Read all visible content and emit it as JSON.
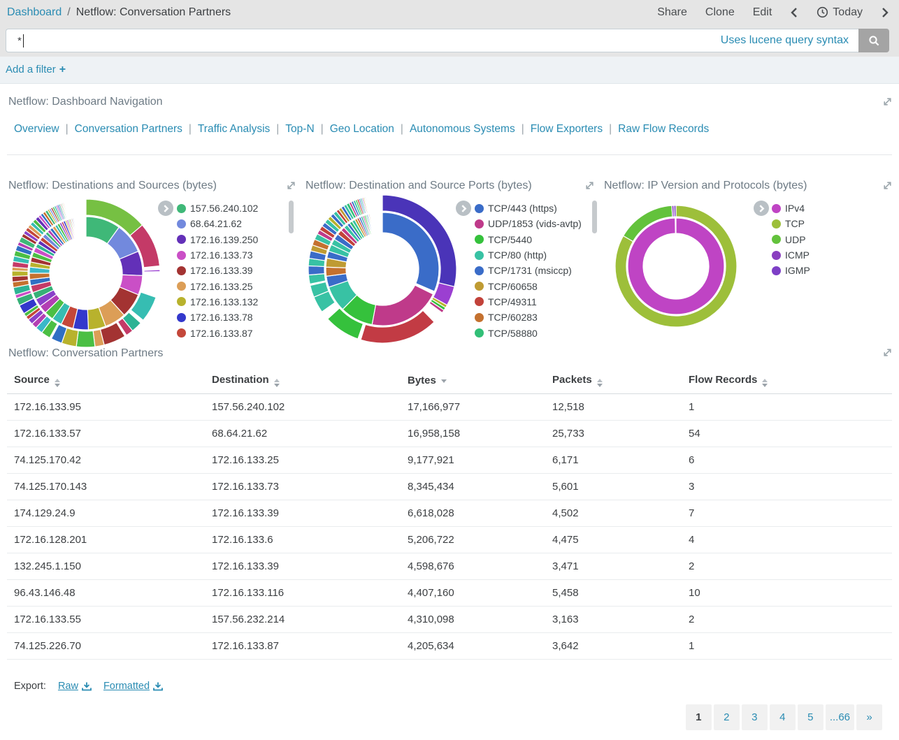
{
  "topbar": {
    "breadcrumb": {
      "root": "Dashboard",
      "separator": "/",
      "current": "Netflow: Conversation Partners"
    },
    "actions": [
      {
        "label": "Share"
      },
      {
        "label": "Clone"
      },
      {
        "label": "Edit"
      }
    ],
    "time_label": "Today"
  },
  "query": {
    "value": "*",
    "syntax_hint": "Uses lucene query syntax"
  },
  "filter_bar": {
    "add_filter_label": "Add a filter",
    "plus_icon": "+"
  },
  "nav_panel": {
    "title": "Netflow: Dashboard Navigation",
    "links": [
      "Overview",
      "Conversation Partners",
      "Traffic Analysis",
      "Top-N",
      "Geo Location",
      "Autonomous Systems",
      "Flow Exporters",
      "Raw Flow Records"
    ]
  },
  "chart_data": [
    {
      "type": "pie",
      "variant": "sunburst",
      "title": "Netflow: Destinations and Sources (bytes)",
      "legend_position": "right",
      "legend": [
        {
          "label": "157.56.240.102",
          "color": "#3fb878"
        },
        {
          "label": "68.64.21.62",
          "color": "#7289dd"
        },
        {
          "label": "172.16.139.250",
          "color": "#6330b8"
        },
        {
          "label": "172.16.133.73",
          "color": "#ca4fc6"
        },
        {
          "label": "172.16.133.39",
          "color": "#a33332"
        },
        {
          "label": "172.16.133.25",
          "color": "#dc9e57"
        },
        {
          "label": "172.16.133.132",
          "color": "#b8b22d"
        },
        {
          "label": "172.16.133.78",
          "color": "#3338cc"
        },
        {
          "label": "172.16.133.87",
          "color": "#c4473a"
        }
      ],
      "rings": [
        [
          [
            "#3fb878",
            34
          ],
          [
            "#7289dd",
            30
          ],
          [
            "#6330b8",
            24
          ],
          [
            "#ca4fc6",
            19
          ],
          [
            "#a33332",
            24
          ],
          [
            "#dc9e57",
            21
          ],
          [
            "#b8b22d",
            17
          ],
          [
            "#3338cc",
            15
          ],
          [
            "#c4473a",
            12
          ],
          [
            "#36bdb2",
            10
          ],
          [
            "#4bbf44",
            9
          ],
          [
            "#b33fb3",
            8
          ],
          [
            "#8a41c9",
            8
          ],
          [
            "#36b077",
            7
          ],
          [
            "#c43a67",
            7
          ],
          [
            "#2f6fc4",
            6
          ],
          [
            "#c4712f",
            6
          ],
          [
            "#3ab8c9",
            6
          ],
          [
            "#b8b22d",
            5
          ],
          [
            "#a33332",
            5
          ],
          [
            "#4bbf44",
            5
          ],
          [
            "#ca4fc6",
            5
          ],
          [
            "#2db394",
            4
          ],
          [
            "#6330b8",
            4
          ],
          [
            "#c4473a",
            4
          ],
          [
            "#7289dd",
            4
          ],
          [
            "#3fb878",
            3
          ],
          [
            "#b33fb3",
            3
          ],
          [
            "#2f6fc4",
            3
          ],
          [
            "#dc9e57",
            3
          ],
          [
            "#36bdb2",
            2.5
          ],
          [
            "#4bbf44",
            2.5
          ],
          [
            "#8a41c9",
            2
          ],
          [
            "#c43a67",
            2
          ],
          [
            "#3338cc",
            2
          ],
          [
            "#b8b22d",
            1.5
          ],
          [
            "#ca4fc6",
            1.5
          ],
          [
            "#3fb878",
            1.2
          ],
          [
            "#c4712f",
            1.2
          ],
          [
            "#2db394",
            1
          ],
          [
            "#a33332",
            1
          ],
          [
            "#7289dd",
            1
          ],
          [
            "#4bbf44",
            0.8
          ],
          [
            "#6330b8",
            0.8
          ],
          [
            "#c4473a",
            0.8
          ],
          [
            "#36bdb2",
            0.7
          ],
          [
            "#b33fb3",
            0.6
          ],
          [
            "#2f6fc4",
            0.6
          ],
          [
            "#dc9e57",
            0.5
          ],
          [
            "#4bbf44",
            0.5
          ],
          [
            "#ffffff",
            7
          ]
        ],
        [
          [
            "#76c043",
            34
          ],
          [
            "#c43a67",
            24
          ],
          [
            "#ffffff",
            2
          ],
          [
            "#9b3fd1",
            1
          ],
          [
            "#ffffff",
            14
          ],
          [
            "#36bdb2",
            14
          ],
          [
            "#ffffff",
            2
          ],
          [
            "#2db394",
            6
          ],
          [
            "#c43a67",
            4
          ],
          [
            "#ffffff",
            1
          ],
          [
            "#a33332",
            12
          ],
          [
            "#dc9e57",
            5
          ],
          [
            "#4bbf44",
            10
          ],
          [
            "#b8b22d",
            8
          ],
          [
            "#2f6fc4",
            6
          ],
          [
            "#ffffff",
            1
          ],
          [
            "#4bbf44",
            5
          ],
          [
            "#3ab8c9",
            4
          ],
          [
            "#b33fb3",
            3
          ],
          [
            "#8a41c9",
            3
          ],
          [
            "#c4473a",
            2
          ],
          [
            "#4bbf44",
            2
          ],
          [
            "#3338cc",
            5
          ],
          [
            "#36b077",
            4
          ],
          [
            "#ca4fc6",
            2
          ],
          [
            "#2db394",
            4
          ],
          [
            "#c4712f",
            3
          ],
          [
            "#a33332",
            3
          ],
          [
            "#b8b22d",
            3
          ],
          [
            "#dc9e57",
            2
          ],
          [
            "#c43a67",
            3
          ],
          [
            "#36bdb2",
            3
          ],
          [
            "#4bbf44",
            3
          ],
          [
            "#2f6fc4",
            3
          ],
          [
            "#b33fb3",
            2
          ],
          [
            "#3fb878",
            3
          ],
          [
            "#a33332",
            2
          ],
          [
            "#8a41c9",
            2
          ],
          [
            "#c4473a",
            2
          ],
          [
            "#dc9e57",
            2
          ],
          [
            "#36bdb2",
            2
          ],
          [
            "#4bbf44",
            2
          ],
          [
            "#6330b8",
            2
          ],
          [
            "#ca4fc6",
            1.5
          ],
          [
            "#2f6fc4",
            1.5
          ],
          [
            "#c4712f",
            1.5
          ],
          [
            "#3fb878",
            1.5
          ],
          [
            "#b8b22d",
            1
          ],
          [
            "#7289dd",
            1
          ],
          [
            "#a33332",
            1
          ],
          [
            "#4bbf44",
            1
          ],
          [
            "#36bdb2",
            1
          ],
          [
            "#b33fb3",
            0.8
          ],
          [
            "#3338cc",
            0.8
          ],
          [
            "#2db394",
            0.8
          ],
          [
            "#c43a67",
            0.6
          ],
          [
            "#76c043",
            0.6
          ],
          [
            "#8a41c9",
            0.5
          ],
          [
            "#dc9e57",
            0.5
          ],
          [
            "#ffffff",
            12
          ]
        ]
      ],
      "has_scrollbar": true
    },
    {
      "type": "pie",
      "variant": "sunburst",
      "title": "Netflow: Destination and Source Ports (bytes)",
      "legend_position": "right",
      "legend": [
        {
          "label": "TCP/443 (https)",
          "color": "#3a6cc8"
        },
        {
          "label": "UDP/1853 (vids-avtp)",
          "color": "#bf3a8a"
        },
        {
          "label": "TCP/5440",
          "color": "#35c13c"
        },
        {
          "label": "TCP/80 (http)",
          "color": "#38c2a4"
        },
        {
          "label": "TCP/1731 (msiccp)",
          "color": "#3a6cc8"
        },
        {
          "label": "TCP/60658",
          "color": "#bf9b33"
        },
        {
          "label": "TCP/49311",
          "color": "#c2423a"
        },
        {
          "label": "TCP/60283",
          "color": "#c4712f"
        },
        {
          "label": "TCP/58880",
          "color": "#32bf77"
        }
      ],
      "rings": [
        [
          [
            "#3a6cc8",
            110
          ],
          [
            "#ffffff",
            3
          ],
          [
            "#bf3a8a",
            72
          ],
          [
            "#35c13c",
            33
          ],
          [
            "#38c2a4",
            26
          ],
          [
            "#3a6cc8",
            11
          ],
          [
            "#c4712f",
            9
          ],
          [
            "#bf9b33",
            9
          ],
          [
            "#3a6cc8",
            7
          ],
          [
            "#38c2a4",
            7
          ],
          [
            "#38c2a4",
            6
          ],
          [
            "#3a6cc8",
            6
          ],
          [
            "#c2423a",
            5
          ],
          [
            "#bf3a8a",
            4
          ],
          [
            "#38c2a4",
            4
          ],
          [
            "#3a6cc8",
            3
          ],
          [
            "#32bf77",
            3
          ],
          [
            "#38c2a4",
            3
          ],
          [
            "#bf9b33",
            2.5
          ],
          [
            "#c2423a",
            2
          ],
          [
            "#3a6cc8",
            2
          ],
          [
            "#38c2a4",
            2
          ],
          [
            "#bf3a8a",
            1.5
          ],
          [
            "#35c13c",
            1.5
          ],
          [
            "#32bf77",
            1.2
          ],
          [
            "#3a6cc8",
            1.2
          ],
          [
            "#38c2a4",
            1
          ],
          [
            "#c4712f",
            1
          ],
          [
            "#bf9b33",
            0.8
          ],
          [
            "#c2423a",
            0.8
          ],
          [
            "#3a6cc8",
            0.7
          ],
          [
            "#38c2a4",
            0.7
          ],
          [
            "#35c13c",
            0.6
          ],
          [
            "#bf3a8a",
            0.5
          ],
          [
            "#3a6cc8",
            0.5
          ],
          [
            "#ffffff",
            8
          ]
        ],
        [
          [
            "#4a34b8",
            88
          ],
          [
            "#9b3fd1",
            13
          ],
          [
            "#b8b22d",
            2
          ],
          [
            "#35c13c",
            2
          ],
          [
            "#bf3a8a",
            2
          ],
          [
            "#ffffff",
            8
          ],
          [
            "#c23b44",
            52
          ],
          [
            "#ffffff",
            2
          ],
          [
            "#35c13c",
            24
          ],
          [
            "#ffffff",
            6
          ],
          [
            "#38c2a4",
            11
          ],
          [
            "#38c2a4",
            8
          ],
          [
            "#ffffff",
            1
          ],
          [
            "#38c2a4",
            6
          ],
          [
            "#3a6cc8",
            6
          ],
          [
            "#38c2a4",
            5
          ],
          [
            "#3a6cc8",
            5
          ],
          [
            "#bf9b33",
            4
          ],
          [
            "#c4712f",
            4
          ],
          [
            "#38c2a4",
            4
          ],
          [
            "#bf3a8a",
            3
          ],
          [
            "#c2423a",
            3
          ],
          [
            "#3a6cc8",
            3
          ],
          [
            "#38c2a4",
            3
          ],
          [
            "#b8b22d",
            2.5
          ],
          [
            "#3a6cc8",
            2.5
          ],
          [
            "#38c2a4",
            2.5
          ],
          [
            "#c2423a",
            2
          ],
          [
            "#bf9b33",
            2
          ],
          [
            "#3a6cc8",
            2
          ],
          [
            "#38c2a4",
            2
          ],
          [
            "#32bf77",
            2
          ],
          [
            "#bf3a8a",
            1.5
          ],
          [
            "#3a6cc8",
            1.5
          ],
          [
            "#38c2a4",
            1.5
          ],
          [
            "#35c13c",
            1.2
          ],
          [
            "#c2423a",
            1.2
          ],
          [
            "#3a6cc8",
            1
          ],
          [
            "#38c2a4",
            1
          ],
          [
            "#9b3fd1",
            0.8
          ],
          [
            "#bf9b33",
            0.8
          ],
          [
            "#c4712f",
            0.6
          ],
          [
            "#3a6cc8",
            0.6
          ],
          [
            "#38c2a4",
            0.5
          ],
          [
            "#c2423a",
            0.5
          ],
          [
            "#ffffff",
            10
          ]
        ]
      ],
      "has_scrollbar": true
    },
    {
      "type": "pie",
      "variant": "sunburst",
      "title": "Netflow: IP Version and Protocols (bytes)",
      "legend_position": "right",
      "legend": [
        {
          "label": "IPv4",
          "color": "#bf44c4"
        },
        {
          "label": "TCP",
          "color": "#9dbf3a"
        },
        {
          "label": "UDP",
          "color": "#63c23c"
        },
        {
          "label": "ICMP",
          "color": "#8a3fc0"
        },
        {
          "label": "IGMP",
          "color": "#7d3fc6"
        }
      ],
      "rings": [
        [
          [
            "#bf44c4",
            359
          ],
          [
            "#ffffff",
            1
          ]
        ],
        [
          [
            "#9dbf3a",
            300
          ],
          [
            "#63c23c",
            56
          ],
          [
            "#8a3fc0",
            2
          ],
          [
            "#7d3fc6",
            2
          ]
        ]
      ],
      "has_scrollbar": false
    }
  ],
  "table_panel": {
    "title": "Netflow: Conversation Partners",
    "columns": [
      {
        "label": "Source",
        "sort": "both"
      },
      {
        "label": "Destination",
        "sort": "both"
      },
      {
        "label": "Bytes",
        "sort": "desc"
      },
      {
        "label": "Packets",
        "sort": "both"
      },
      {
        "label": "Flow Records",
        "sort": "both"
      }
    ],
    "rows": [
      [
        "172.16.133.95",
        "157.56.240.102",
        "17,166,977",
        "12,518",
        "1"
      ],
      [
        "172.16.133.57",
        "68.64.21.62",
        "16,958,158",
        "25,733",
        "54"
      ],
      [
        "74.125.170.42",
        "172.16.133.25",
        "9,177,921",
        "6,171",
        "6"
      ],
      [
        "74.125.170.143",
        "172.16.133.73",
        "8,345,434",
        "5,601",
        "3"
      ],
      [
        "174.129.24.9",
        "172.16.133.39",
        "6,618,028",
        "4,502",
        "7"
      ],
      [
        "172.16.128.201",
        "172.16.133.6",
        "5,206,722",
        "4,475",
        "4"
      ],
      [
        "132.245.1.150",
        "172.16.133.39",
        "4,598,676",
        "3,471",
        "2"
      ],
      [
        "96.43.146.48",
        "172.16.133.116",
        "4,407,160",
        "5,458",
        "10"
      ],
      [
        "172.16.133.55",
        "157.56.232.214",
        "4,310,098",
        "3,163",
        "2"
      ],
      [
        "74.125.226.70",
        "172.16.133.87",
        "4,205,634",
        "3,642",
        "1"
      ]
    ]
  },
  "export": {
    "label": "Export:",
    "links": [
      "Raw",
      "Formatted"
    ]
  },
  "pagination": {
    "pages": [
      "1",
      "2",
      "3",
      "4",
      "5",
      "...66",
      "»"
    ],
    "current": "1"
  }
}
